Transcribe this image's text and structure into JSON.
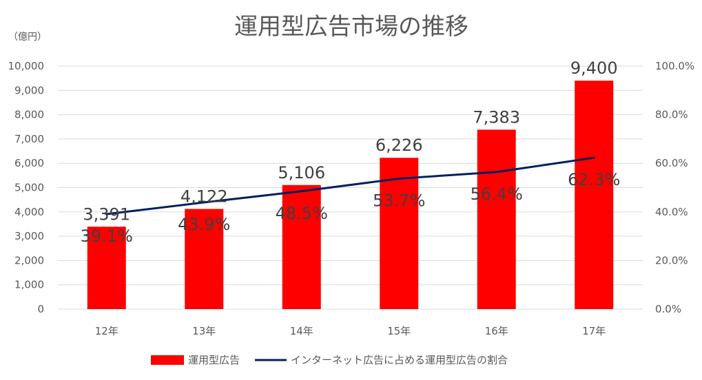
{
  "chart_data": {
    "type": "bar",
    "title": "運用型広告市場の推移",
    "y_unit": "（億円）",
    "categories": [
      "12年",
      "13年",
      "14年",
      "15年",
      "16年",
      "17年"
    ],
    "series": [
      {
        "name": "運用型広告",
        "type": "bar",
        "axis": "left",
        "color": "#ff0000",
        "values": [
          3391,
          4122,
          5106,
          6226,
          7383,
          9400
        ],
        "labels": [
          "3,391",
          "4,122",
          "5,106",
          "6,226",
          "7,383",
          "9,400"
        ]
      },
      {
        "name": "インターネット広告に占める運用型広告の割合",
        "type": "line",
        "axis": "right",
        "color": "#002060",
        "values": [
          39.1,
          43.9,
          48.5,
          53.7,
          56.4,
          62.3
        ],
        "labels": [
          "39.1%",
          "43.9%",
          "48.5%",
          "53.7%",
          "56.4%",
          "62.3%"
        ]
      }
    ],
    "left_axis": {
      "min": 0,
      "max": 10000,
      "ticks": [
        "0",
        "1,000",
        "2,000",
        "3,000",
        "4,000",
        "5,000",
        "6,000",
        "7,000",
        "8,000",
        "9,000",
        "10,000"
      ]
    },
    "right_axis": {
      "min": 0,
      "max": 100,
      "ticks": [
        "0.0%",
        "20.0%",
        "40.0%",
        "60.0%",
        "80.0%",
        "100.0%"
      ]
    },
    "gridlines": true,
    "legend_position": "bottom"
  }
}
